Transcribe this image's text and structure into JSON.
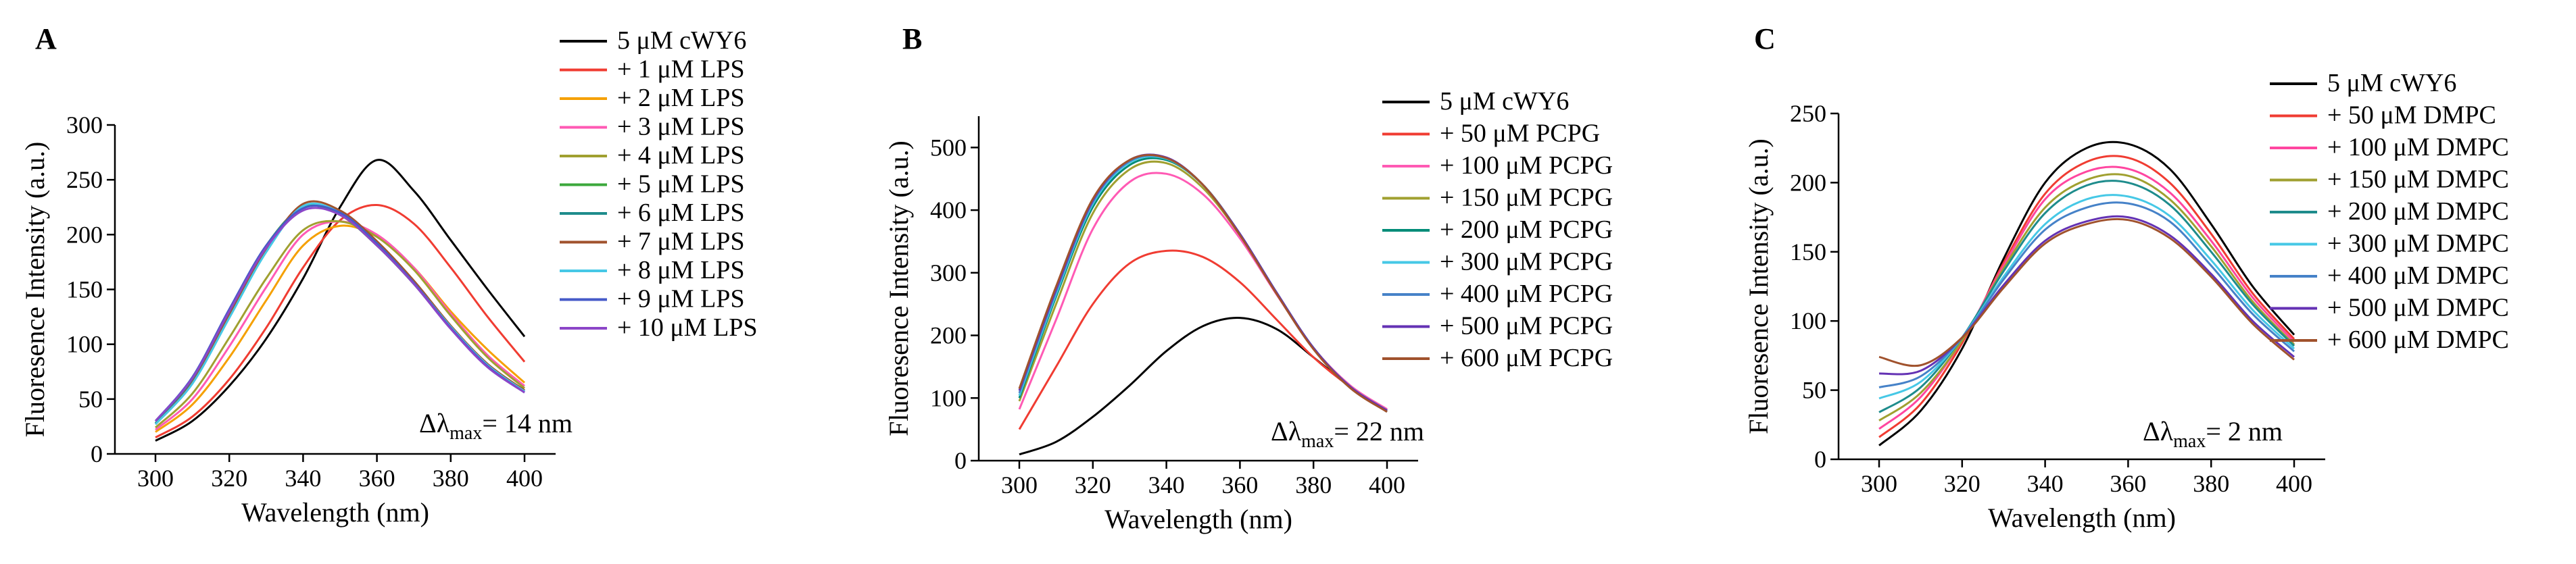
{
  "chart_data": [
    {
      "type": "line",
      "panel_label": "A",
      "title": "",
      "xlabel": "Wavelength (nm)",
      "ylabel": "Fluoresence Intensity (a.u.)",
      "xlim": [
        300,
        400
      ],
      "ylim": [
        0,
        300
      ],
      "xticks": [
        300,
        320,
        340,
        360,
        380,
        400
      ],
      "yticks": [
        0,
        50,
        100,
        150,
        200,
        250,
        300
      ],
      "annotation": {
        "prefix": "Δλ",
        "subscript": "max",
        "suffix": "= 14 nm"
      },
      "x": [
        300,
        310,
        320,
        330,
        340,
        350,
        360,
        370,
        380,
        390,
        400
      ],
      "series": [
        {
          "name": "5 μM cWY6",
          "color": "#000000",
          "values": [
            12,
            30,
            62,
            105,
            160,
            225,
            268,
            240,
            195,
            150,
            107
          ]
        },
        {
          "name": "+ 1 μM LPS",
          "color": "#f03c32",
          "values": [
            15,
            34,
            68,
            115,
            170,
            213,
            227,
            210,
            170,
            125,
            84
          ]
        },
        {
          "name": "+ 2 μM LPS",
          "color": "#f5a000",
          "values": [
            20,
            45,
            88,
            140,
            190,
            208,
            198,
            170,
            130,
            95,
            65
          ]
        },
        {
          "name": "+ 3 μM LPS",
          "color": "#ff5ab4",
          "values": [
            22,
            50,
            98,
            152,
            200,
            212,
            200,
            170,
            128,
            90,
            62
          ]
        },
        {
          "name": "+ 4 μM LPS",
          "color": "#a0a030",
          "values": [
            24,
            55,
            106,
            160,
            204,
            212,
            198,
            168,
            126,
            88,
            60
          ]
        },
        {
          "name": "+ 5 μM LPS",
          "color": "#3ca83c",
          "values": [
            28,
            68,
            130,
            190,
            225,
            218,
            190,
            155,
            115,
            80,
            58
          ]
        },
        {
          "name": "+ 6 μM LPS",
          "color": "#1e8c8c",
          "values": [
            28,
            66,
            128,
            188,
            224,
            220,
            192,
            157,
            116,
            81,
            57
          ]
        },
        {
          "name": "+ 7 μM LPS",
          "color": "#a0522d",
          "values": [
            27,
            65,
            126,
            186,
            228,
            222,
            194,
            158,
            117,
            82,
            58
          ]
        },
        {
          "name": "+ 8 μM LPS",
          "color": "#46c8e6",
          "values": [
            27,
            64,
            124,
            184,
            226,
            220,
            192,
            156,
            116,
            81,
            57
          ]
        },
        {
          "name": "+ 9 μM LPS",
          "color": "#465ac8",
          "values": [
            30,
            70,
            132,
            190,
            224,
            220,
            192,
            156,
            115,
            80,
            56
          ]
        },
        {
          "name": "+ 10 μM LPS",
          "color": "#8c46c8",
          "values": [
            30,
            69,
            130,
            188,
            222,
            218,
            190,
            155,
            114,
            79,
            56
          ]
        }
      ]
    },
    {
      "type": "line",
      "panel_label": "B",
      "title": "",
      "xlabel": "Wavelength (nm)",
      "ylabel": "Fluoresence Intensity (a.u.)",
      "xlim": [
        300,
        400
      ],
      "ylim": [
        0,
        550
      ],
      "xticks": [
        300,
        320,
        340,
        360,
        380,
        400
      ],
      "yticks": [
        0,
        100,
        200,
        300,
        400,
        500
      ],
      "annotation": {
        "prefix": "Δλ",
        "subscript": "max",
        "suffix": "= 22 nm"
      },
      "x": [
        300,
        310,
        320,
        330,
        340,
        350,
        360,
        370,
        380,
        390,
        400
      ],
      "series": [
        {
          "name": "5 μM cWY6",
          "color": "#000000",
          "values": [
            10,
            30,
            70,
            120,
            175,
            215,
            228,
            210,
            165,
            118,
            78
          ]
        },
        {
          "name": "+ 50 μM PCPG",
          "color": "#f03c32",
          "values": [
            50,
            150,
            250,
            315,
            335,
            325,
            285,
            225,
            165,
            118,
            82
          ]
        },
        {
          "name": "+ 100 μM PCPG",
          "color": "#ff5ab4",
          "values": [
            82,
            225,
            370,
            445,
            458,
            425,
            355,
            265,
            180,
            120,
            82
          ]
        },
        {
          "name": "+ 150 μM PCPG",
          "color": "#a0a030",
          "values": [
            95,
            250,
            395,
            465,
            475,
            435,
            360,
            268,
            180,
            118,
            80
          ]
        },
        {
          "name": "+ 200 μM PCPG",
          "color": "#008c78",
          "values": [
            100,
            262,
            405,
            472,
            480,
            440,
            362,
            268,
            180,
            118,
            80
          ]
        },
        {
          "name": "+ 300 μM PCPG",
          "color": "#46c8e6",
          "values": [
            104,
            266,
            410,
            476,
            482,
            440,
            362,
            268,
            180,
            118,
            80
          ]
        },
        {
          "name": "+ 400 μM PCPG",
          "color": "#4682c8",
          "values": [
            108,
            270,
            413,
            478,
            483,
            440,
            362,
            268,
            180,
            118,
            80
          ]
        },
        {
          "name": "+ 500 μM PCPG",
          "color": "#6432b4",
          "values": [
            112,
            274,
            416,
            480,
            484,
            440,
            362,
            268,
            180,
            118,
            80
          ]
        },
        {
          "name": "+ 600 μM PCPG",
          "color": "#a0522d",
          "values": [
            115,
            278,
            418,
            480,
            483,
            440,
            360,
            266,
            178,
            116,
            78
          ]
        }
      ]
    },
    {
      "type": "line",
      "panel_label": "C",
      "title": "",
      "xlabel": "Wavelength (nm)",
      "ylabel": "Fluoresence Intensity (a.u.)",
      "xlim": [
        300,
        400
      ],
      "ylim": [
        0,
        250
      ],
      "xticks": [
        300,
        320,
        340,
        360,
        380,
        400
      ],
      "yticks": [
        0,
        50,
        100,
        150,
        200,
        250
      ],
      "annotation": {
        "prefix": "Δλ",
        "subscript": "max",
        "suffix": "= 2 nm"
      },
      "x": [
        300,
        310,
        320,
        330,
        340,
        350,
        360,
        370,
        380,
        390,
        400
      ],
      "series": [
        {
          "name": "5 μM cWY6",
          "color": "#000000",
          "values": [
            10,
            35,
            80,
            145,
            200,
            225,
            228,
            210,
            170,
            125,
            90
          ]
        },
        {
          "name": "+ 50 μM DMPC",
          "color": "#f03c32",
          "values": [
            16,
            40,
            84,
            142,
            192,
            215,
            218,
            200,
            163,
            120,
            87
          ]
        },
        {
          "name": "+ 100 μM DMPC",
          "color": "#ff46a0",
          "values": [
            22,
            45,
            86,
            140,
            188,
            208,
            210,
            193,
            158,
            117,
            85
          ]
        },
        {
          "name": "+ 150 μM DMPC",
          "color": "#a0a030",
          "values": [
            28,
            48,
            86,
            138,
            182,
            202,
            205,
            188,
            154,
            114,
            83
          ]
        },
        {
          "name": "+ 200 μM DMPC",
          "color": "#1e8c8c",
          "values": [
            34,
            52,
            88,
            136,
            178,
            198,
            200,
            184,
            150,
            112,
            82
          ]
        },
        {
          "name": "+ 300 μM DMPC",
          "color": "#46c8e6",
          "values": [
            44,
            56,
            88,
            132,
            170,
            188,
            190,
            176,
            144,
            108,
            80
          ]
        },
        {
          "name": "+ 400 μM DMPC",
          "color": "#4682c8",
          "values": [
            52,
            60,
            88,
            130,
            166,
            182,
            185,
            172,
            140,
            105,
            78
          ]
        },
        {
          "name": "+ 500 μM DMPC",
          "color": "#6432b4",
          "values": [
            62,
            64,
            88,
            126,
            158,
            172,
            175,
            162,
            134,
            100,
            74
          ]
        },
        {
          "name": "+ 600 μM DMPC",
          "color": "#a0522d",
          "values": [
            74,
            68,
            88,
            124,
            156,
            170,
            173,
            160,
            132,
            98,
            72
          ]
        }
      ]
    }
  ]
}
